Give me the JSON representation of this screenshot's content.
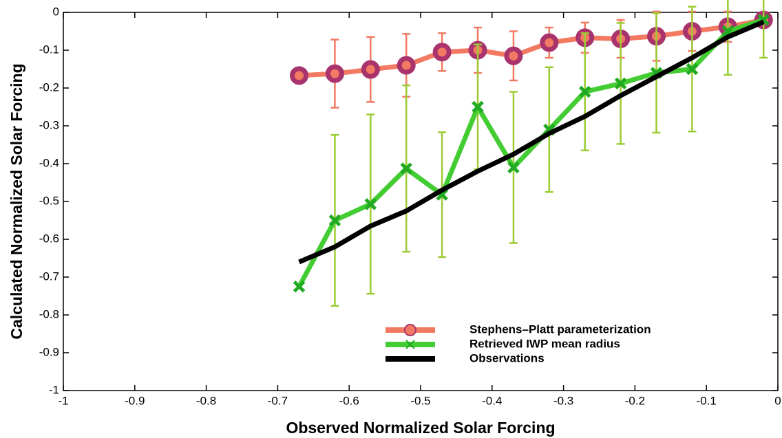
{
  "chart_data": {
    "type": "line",
    "xlabel": "Observed Normalized Solar Forcing",
    "ylabel": "Calculated Normalized Solar Forcing",
    "x": [
      -0.67,
      -0.62,
      -0.57,
      -0.52,
      -0.47,
      -0.42,
      -0.37,
      -0.32,
      -0.27,
      -0.22,
      -0.17,
      -0.12,
      -0.07,
      -0.02
    ],
    "series": [
      {
        "name": "Stephens–Platt parameterization",
        "color": "#f37a62",
        "marker": "circle",
        "marker_color": "#a8336d",
        "values": [
          -0.167,
          -0.162,
          -0.151,
          -0.14,
          -0.105,
          -0.1,
          -0.115,
          -0.08,
          -0.067,
          -0.07,
          -0.063,
          -0.05,
          -0.038,
          -0.02
        ],
        "errors": [
          null,
          0.09,
          0.086,
          0.083,
          0.05,
          0.06,
          0.065,
          0.04,
          0.04,
          0.05,
          0.065,
          0.052,
          0.04,
          0.02
        ],
        "error_color": "#f37a62"
      },
      {
        "name": "Retrieved IWP mean radius",
        "color": "#44cc33",
        "marker": "x",
        "marker_color": "#22aa22",
        "values": [
          -0.725,
          -0.55,
          -0.507,
          -0.413,
          -0.482,
          -0.25,
          -0.41,
          -0.31,
          -0.21,
          -0.188,
          -0.16,
          -0.15,
          -0.05,
          -0.02
        ],
        "errors": [
          null,
          0.226,
          0.237,
          0.22,
          0.165,
          0.165,
          0.2,
          0.165,
          0.155,
          0.16,
          0.158,
          0.165,
          0.115,
          0.1
        ],
        "error_color": "#9ccc33"
      },
      {
        "name": "Observations",
        "color": "#000000",
        "marker": "none",
        "values": [
          -0.66,
          -0.62,
          -0.565,
          -0.525,
          -0.47,
          -0.42,
          -0.375,
          -0.32,
          -0.275,
          -0.22,
          -0.17,
          -0.12,
          -0.065,
          -0.025
        ]
      }
    ],
    "xlim": [
      -1,
      0
    ],
    "ylim": [
      -1,
      0
    ],
    "xticks": [
      -1,
      -0.9,
      -0.8,
      -0.7,
      -0.6,
      -0.5,
      -0.4,
      -0.3,
      -0.2,
      -0.1,
      0
    ],
    "yticks": [
      -1,
      -0.9,
      -0.8,
      -0.7,
      -0.6,
      -0.5,
      -0.4,
      -0.3,
      -0.2,
      -0.1,
      0
    ],
    "grid": false,
    "legend": "lower right"
  }
}
